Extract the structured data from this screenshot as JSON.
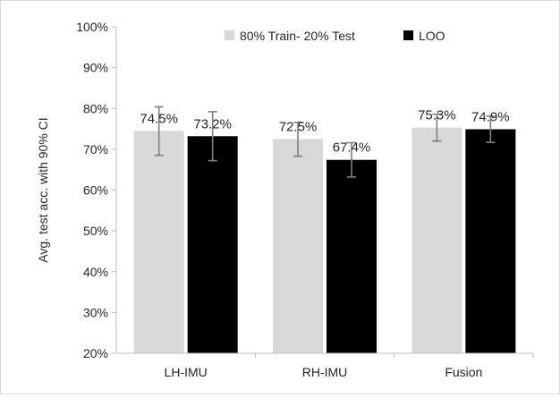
{
  "chart_data": {
    "type": "bar",
    "ylabel": "Avg. test acc. with 90% CI",
    "ylim": [
      20,
      100
    ],
    "yticks": [
      "20%",
      "30%",
      "40%",
      "50%",
      "60%",
      "70%",
      "80%",
      "90%",
      "100%"
    ],
    "categories": [
      "LH-IMU",
      "RH-IMU",
      "Fusion"
    ],
    "legend_position": "top-center",
    "series": [
      {
        "name": "80% Train- 20% Test",
        "color": "#d9d9d9",
        "values": [
          74.5,
          72.5,
          75.3
        ],
        "labels": [
          "74.5%",
          "72.5%",
          "75.3%"
        ],
        "ci_low": [
          68.5,
          68.3,
          72.0
        ],
        "ci_high": [
          80.4,
          76.6,
          78.6
        ]
      },
      {
        "name": "LOO",
        "color": "#000000",
        "values": [
          73.2,
          67.4,
          74.9
        ],
        "labels": [
          "73.2%",
          "67.4%",
          "74.9%"
        ],
        "ci_low": [
          67.2,
          63.2,
          71.7
        ],
        "ci_high": [
          79.2,
          71.6,
          78.1
        ]
      }
    ],
    "gridlines": false
  }
}
